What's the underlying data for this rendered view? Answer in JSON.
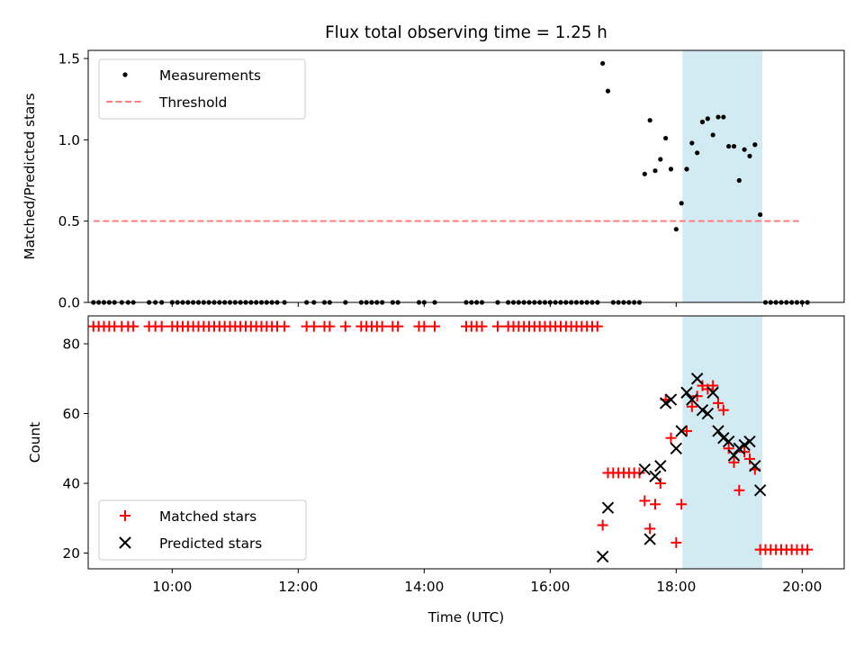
{
  "chart_data": [
    {
      "type": "scatter",
      "title": "Flux total observing time = 1.25 h",
      "xlabel": "",
      "ylabel": "Matched/Predicted stars",
      "xlim": [
        "08:40",
        "20:40"
      ],
      "ylim": [
        0,
        1.55
      ],
      "yticks": [
        "0.0",
        "0.5",
        "1.0",
        "1.5"
      ],
      "highlight_span": {
        "x0": "18:06",
        "x1": "19:22",
        "color": "#add8e6"
      },
      "legend_position": "upper-left",
      "series": [
        {
          "name": "Measurements",
          "marker": "dot",
          "color": "#000000",
          "points": [
            [
              "08:45",
              0
            ],
            [
              "08:50",
              0
            ],
            [
              "08:55",
              0
            ],
            [
              "09:00",
              0
            ],
            [
              "09:05",
              0
            ],
            [
              "09:12",
              0
            ],
            [
              "09:18",
              0
            ],
            [
              "09:23",
              0
            ],
            [
              "09:38",
              0
            ],
            [
              "09:44",
              0
            ],
            [
              "09:50",
              0
            ],
            [
              "10:00",
              0
            ],
            [
              "10:05",
              0
            ],
            [
              "10:10",
              0
            ],
            [
              "10:15",
              0
            ],
            [
              "10:20",
              0
            ],
            [
              "10:25",
              0
            ],
            [
              "10:30",
              0
            ],
            [
              "10:35",
              0
            ],
            [
              "10:40",
              0
            ],
            [
              "10:45",
              0
            ],
            [
              "10:50",
              0
            ],
            [
              "10:55",
              0
            ],
            [
              "11:00",
              0
            ],
            [
              "11:05",
              0
            ],
            [
              "11:10",
              0
            ],
            [
              "11:15",
              0
            ],
            [
              "11:20",
              0
            ],
            [
              "11:25",
              0
            ],
            [
              "11:30",
              0
            ],
            [
              "11:35",
              0
            ],
            [
              "11:40",
              0
            ],
            [
              "11:47",
              0
            ],
            [
              "12:08",
              0
            ],
            [
              "12:15",
              0
            ],
            [
              "12:25",
              0
            ],
            [
              "12:30",
              0
            ],
            [
              "12:45",
              0
            ],
            [
              "13:00",
              0
            ],
            [
              "13:05",
              0
            ],
            [
              "13:10",
              0
            ],
            [
              "13:15",
              0
            ],
            [
              "13:20",
              0
            ],
            [
              "13:30",
              0
            ],
            [
              "13:35",
              0
            ],
            [
              "13:55",
              0
            ],
            [
              "14:00",
              0
            ],
            [
              "14:10",
              0
            ],
            [
              "14:40",
              0
            ],
            [
              "14:45",
              0
            ],
            [
              "14:50",
              0
            ],
            [
              "14:55",
              0
            ],
            [
              "15:10",
              0
            ],
            [
              "15:20",
              0
            ],
            [
              "15:25",
              0
            ],
            [
              "15:30",
              0
            ],
            [
              "15:35",
              0
            ],
            [
              "15:40",
              0
            ],
            [
              "15:45",
              0
            ],
            [
              "15:50",
              0
            ],
            [
              "15:55",
              0
            ],
            [
              "16:00",
              0
            ],
            [
              "16:05",
              0
            ],
            [
              "16:10",
              0
            ],
            [
              "16:15",
              0
            ],
            [
              "16:20",
              0
            ],
            [
              "16:25",
              0
            ],
            [
              "16:30",
              0
            ],
            [
              "16:35",
              0
            ],
            [
              "16:40",
              0
            ],
            [
              "16:45",
              0
            ],
            [
              "16:50",
              1.47
            ],
            [
              "16:55",
              1.3
            ],
            [
              "17:00",
              0
            ],
            [
              "17:05",
              0
            ],
            [
              "17:10",
              0
            ],
            [
              "17:15",
              0
            ],
            [
              "17:20",
              0
            ],
            [
              "17:25",
              0
            ],
            [
              "17:30",
              0.79
            ],
            [
              "17:35",
              1.12
            ],
            [
              "17:40",
              0.81
            ],
            [
              "17:45",
              0.88
            ],
            [
              "17:50",
              1.01
            ],
            [
              "17:55",
              0.82
            ],
            [
              "18:00",
              0.45
            ],
            [
              "18:05",
              0.61
            ],
            [
              "18:10",
              0.82
            ],
            [
              "18:15",
              0.98
            ],
            [
              "18:20",
              0.92
            ],
            [
              "18:25",
              1.11
            ],
            [
              "18:30",
              1.13
            ],
            [
              "18:35",
              1.03
            ],
            [
              "18:40",
              1.14
            ],
            [
              "18:45",
              1.14
            ],
            [
              "18:50",
              0.96
            ],
            [
              "18:55",
              0.96
            ],
            [
              "19:00",
              0.75
            ],
            [
              "19:05",
              0.94
            ],
            [
              "19:10",
              0.9
            ],
            [
              "19:15",
              0.97
            ],
            [
              "19:20",
              0.54
            ],
            [
              "19:25",
              0
            ],
            [
              "19:30",
              0
            ],
            [
              "19:35",
              0
            ],
            [
              "19:40",
              0
            ],
            [
              "19:45",
              0
            ],
            [
              "19:50",
              0
            ],
            [
              "19:55",
              0
            ],
            [
              "20:00",
              0
            ],
            [
              "20:05",
              0
            ]
          ]
        },
        {
          "name": "Threshold",
          "marker": "dashed-line",
          "color": "#ff7f7f",
          "points": [
            [
              "08:45",
              0.5
            ],
            [
              "20:00",
              0.5
            ]
          ]
        }
      ]
    },
    {
      "type": "scatter",
      "title": "",
      "xlabel": "Time (UTC)",
      "ylabel": "Count",
      "xlim": [
        "08:40",
        "20:40"
      ],
      "ylim": [
        15.5,
        88
      ],
      "xticks": [
        "10:00",
        "12:00",
        "14:00",
        "16:00",
        "18:00",
        "20:00"
      ],
      "yticks": [
        "20",
        "40",
        "60",
        "80"
      ],
      "highlight_span": {
        "x0": "18:06",
        "x1": "19:22",
        "color": "#add8e6"
      },
      "legend_position": "lower-left",
      "series": [
        {
          "name": "Matched stars",
          "marker": "plus",
          "color": "#ff0000",
          "points": [
            [
              "08:45",
              85
            ],
            [
              "08:50",
              85
            ],
            [
              "08:55",
              85
            ],
            [
              "09:00",
              85
            ],
            [
              "09:05",
              85
            ],
            [
              "09:12",
              85
            ],
            [
              "09:18",
              85
            ],
            [
              "09:23",
              85
            ],
            [
              "09:38",
              85
            ],
            [
              "09:44",
              85
            ],
            [
              "09:50",
              85
            ],
            [
              "10:00",
              85
            ],
            [
              "10:05",
              85
            ],
            [
              "10:10",
              85
            ],
            [
              "10:15",
              85
            ],
            [
              "10:20",
              85
            ],
            [
              "10:25",
              85
            ],
            [
              "10:30",
              85
            ],
            [
              "10:35",
              85
            ],
            [
              "10:40",
              85
            ],
            [
              "10:45",
              85
            ],
            [
              "10:50",
              85
            ],
            [
              "10:55",
              85
            ],
            [
              "11:00",
              85
            ],
            [
              "11:05",
              85
            ],
            [
              "11:10",
              85
            ],
            [
              "11:15",
              85
            ],
            [
              "11:20",
              85
            ],
            [
              "11:25",
              85
            ],
            [
              "11:30",
              85
            ],
            [
              "11:35",
              85
            ],
            [
              "11:40",
              85
            ],
            [
              "11:47",
              85
            ],
            [
              "12:08",
              85
            ],
            [
              "12:15",
              85
            ],
            [
              "12:25",
              85
            ],
            [
              "12:30",
              85
            ],
            [
              "12:45",
              85
            ],
            [
              "13:00",
              85
            ],
            [
              "13:05",
              85
            ],
            [
              "13:10",
              85
            ],
            [
              "13:15",
              85
            ],
            [
              "13:20",
              85
            ],
            [
              "13:30",
              85
            ],
            [
              "13:35",
              85
            ],
            [
              "13:55",
              85
            ],
            [
              "14:00",
              85
            ],
            [
              "14:10",
              85
            ],
            [
              "14:40",
              85
            ],
            [
              "14:45",
              85
            ],
            [
              "14:50",
              85
            ],
            [
              "14:55",
              85
            ],
            [
              "15:10",
              85
            ],
            [
              "15:20",
              85
            ],
            [
              "15:25",
              85
            ],
            [
              "15:30",
              85
            ],
            [
              "15:35",
              85
            ],
            [
              "15:40",
              85
            ],
            [
              "15:45",
              85
            ],
            [
              "15:50",
              85
            ],
            [
              "15:55",
              85
            ],
            [
              "16:00",
              85
            ],
            [
              "16:05",
              85
            ],
            [
              "16:10",
              85
            ],
            [
              "16:15",
              85
            ],
            [
              "16:20",
              85
            ],
            [
              "16:25",
              85
            ],
            [
              "16:30",
              85
            ],
            [
              "16:35",
              85
            ],
            [
              "16:40",
              85
            ],
            [
              "16:45",
              85
            ],
            [
              "16:50",
              28
            ],
            [
              "16:55",
              43
            ],
            [
              "17:00",
              43
            ],
            [
              "17:05",
              43
            ],
            [
              "17:10",
              43
            ],
            [
              "17:15",
              43
            ],
            [
              "17:20",
              43
            ],
            [
              "17:25",
              43
            ],
            [
              "17:30",
              35
            ],
            [
              "17:35",
              27
            ],
            [
              "17:40",
              34
            ],
            [
              "17:45",
              40
            ],
            [
              "17:50",
              64
            ],
            [
              "17:55",
              53
            ],
            [
              "18:00",
              23
            ],
            [
              "18:05",
              34
            ],
            [
              "18:10",
              55
            ],
            [
              "18:15",
              62
            ],
            [
              "18:20",
              65
            ],
            [
              "18:25",
              68
            ],
            [
              "18:30",
              67
            ],
            [
              "18:35",
              68
            ],
            [
              "18:40",
              63
            ],
            [
              "18:45",
              61
            ],
            [
              "18:50",
              50
            ],
            [
              "18:55",
              46
            ],
            [
              "19:00",
              38
            ],
            [
              "19:05",
              49
            ],
            [
              "19:10",
              47
            ],
            [
              "19:15",
              44
            ],
            [
              "19:20",
              21
            ],
            [
              "19:25",
              21
            ],
            [
              "19:30",
              21
            ],
            [
              "19:35",
              21
            ],
            [
              "19:40",
              21
            ],
            [
              "19:45",
              21
            ],
            [
              "19:50",
              21
            ],
            [
              "19:55",
              21
            ],
            [
              "20:00",
              21
            ],
            [
              "20:05",
              21
            ]
          ]
        },
        {
          "name": "Predicted stars",
          "marker": "x",
          "color": "#000000",
          "points": [
            [
              "16:50",
              19
            ],
            [
              "16:55",
              33
            ],
            [
              "17:30",
              44
            ],
            [
              "17:35",
              24
            ],
            [
              "17:40",
              42
            ],
            [
              "17:45",
              45
            ],
            [
              "17:50",
              63
            ],
            [
              "17:55",
              64
            ],
            [
              "18:00",
              50
            ],
            [
              "18:05",
              55
            ],
            [
              "18:10",
              66
            ],
            [
              "18:15",
              64
            ],
            [
              "18:20",
              70
            ],
            [
              "18:25",
              61
            ],
            [
              "18:30",
              60
            ],
            [
              "18:35",
              66
            ],
            [
              "18:40",
              55
            ],
            [
              "18:45",
              53
            ],
            [
              "18:50",
              52
            ],
            [
              "18:55",
              48
            ],
            [
              "19:00",
              50
            ],
            [
              "19:05",
              51
            ],
            [
              "19:10",
              52
            ],
            [
              "19:15",
              45
            ],
            [
              "19:20",
              38
            ]
          ]
        }
      ]
    }
  ]
}
